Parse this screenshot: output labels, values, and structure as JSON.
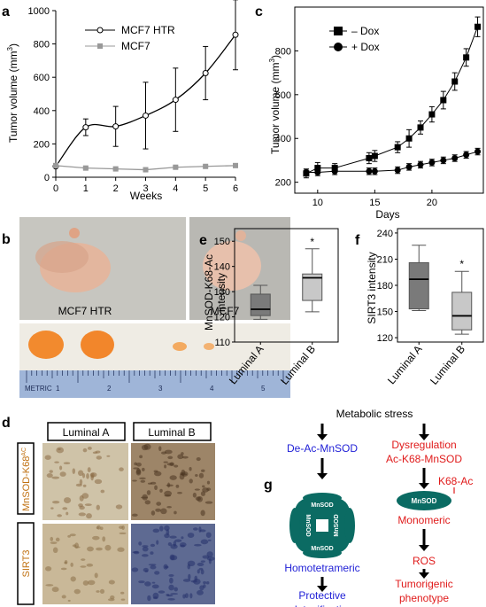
{
  "panel_letters": {
    "a": "a",
    "b": "b",
    "c": "c",
    "d": "d",
    "e": "e",
    "f": "f",
    "g": "g"
  },
  "chart_data": [
    {
      "id": "a",
      "type": "line",
      "xlabel": "Weeks",
      "ylabel_pre": "Tumor volume (mm",
      "ylabel_sup": "3",
      "ylabel_post": ")",
      "x": [
        0,
        1,
        2,
        3,
        4,
        5,
        6
      ],
      "xlim": [
        0,
        6
      ],
      "ylim": [
        0,
        1000
      ],
      "xticks": [
        "0",
        "1",
        "2",
        "3",
        "4",
        "5",
        "6"
      ],
      "yticks": [
        "0",
        "200",
        "400",
        "600",
        "800",
        "1000"
      ],
      "legend_placement": "top",
      "series": [
        {
          "name": "MCF7 HTR",
          "marker": "open-circle",
          "color": "#000000",
          "smooth": true,
          "values": [
            65,
            300,
            305,
            370,
            465,
            625,
            855
          ],
          "err": [
            0,
            50,
            120,
            200,
            190,
            160,
            210
          ]
        },
        {
          "name": "MCF7",
          "marker": "square",
          "color": "#999999",
          "smooth": false,
          "values": [
            70,
            55,
            50,
            45,
            60,
            65,
            70
          ],
          "err": [
            0,
            5,
            5,
            5,
            5,
            5,
            5
          ]
        }
      ]
    },
    {
      "id": "c",
      "type": "line",
      "xlabel": "Days",
      "ylabel_pre": "Tumor volume (mm",
      "ylabel_sup": "3",
      "ylabel_post": ")",
      "xlim": [
        8,
        24.5
      ],
      "ylim": [
        150,
        1000
      ],
      "xticks": [
        "10",
        "15",
        "20"
      ],
      "xtick_values": [
        10,
        15,
        20
      ],
      "yticks": [
        "200",
        "400",
        "600",
        "800"
      ],
      "ytick_values": [
        200,
        400,
        600,
        800
      ],
      "legend_placement": "top-left",
      "series": [
        {
          "name": "– Dox",
          "marker": "square",
          "color": "#000000",
          "x": [
            9,
            10,
            11.5,
            14.5,
            15,
            17,
            18,
            19,
            20,
            21,
            22,
            23,
            24
          ],
          "values": [
            240,
            265,
            265,
            310,
            320,
            360,
            400,
            450,
            510,
            575,
            660,
            770,
            910
          ],
          "err": [
            20,
            25,
            20,
            25,
            25,
            25,
            40,
            30,
            35,
            40,
            40,
            40,
            45
          ]
        },
        {
          "name": "+ Dox",
          "marker": "circle",
          "color": "#000000",
          "x": [
            9,
            10,
            11.5,
            14.5,
            15,
            17,
            18,
            19,
            20,
            21,
            22,
            23,
            24
          ],
          "values": [
            245,
            245,
            250,
            250,
            250,
            255,
            270,
            280,
            290,
            300,
            310,
            325,
            340
          ],
          "err": [
            15,
            15,
            15,
            15,
            15,
            15,
            15,
            15,
            15,
            15,
            15,
            15,
            15
          ]
        }
      ]
    },
    {
      "id": "e",
      "type": "box",
      "ylabel": "MnSOD-K68-Ac\nintensity",
      "ylabel_line1": "MnSOD-K68-Ac",
      "ylabel_line2": "intensity",
      "ylim": [
        110,
        155
      ],
      "yticks": [
        "110",
        "120",
        "130",
        "140",
        "150"
      ],
      "ytick_values": [
        110,
        120,
        130,
        140,
        150
      ],
      "categories": [
        "Luminal A",
        "Luminal B"
      ],
      "boxes": [
        {
          "whisker_low": 119,
          "q1": 120.5,
          "median": 123,
          "q3": 129,
          "whisker_high": 132.5,
          "color": "#7a7a7a"
        },
        {
          "whisker_low": 122,
          "q1": 126.5,
          "median": 135.5,
          "q3": 137,
          "whisker_high": 147,
          "color": "#c8c8c8"
        }
      ],
      "annotation": "*"
    },
    {
      "id": "f",
      "type": "box",
      "ylabel": "SIRT3 intensity",
      "ylim": [
        115,
        245
      ],
      "yticks": [
        "120",
        "150",
        "180",
        "210",
        "240"
      ],
      "ytick_values": [
        120,
        150,
        180,
        210,
        240
      ],
      "categories": [
        "Luminal A",
        "Luminal B"
      ],
      "boxes": [
        {
          "whisker_low": 151,
          "q1": 153,
          "median": 187,
          "q3": 206,
          "whisker_high": 226,
          "color": "#7a7a7a"
        },
        {
          "whisker_low": 124,
          "q1": 129,
          "median": 145,
          "q3": 172,
          "whisker_high": 196,
          "color": "#c8c8c8"
        }
      ],
      "annotation": "*"
    }
  ],
  "panel_b": {
    "label_left": "MCF7 HTR",
    "label_right": "MCF7",
    "ruler_text": "METRIC",
    "ruler_numbers": [
      "1",
      "2",
      "3",
      "4",
      "5"
    ]
  },
  "panel_d": {
    "col_headers": [
      "Luminal A",
      "Luminal B"
    ],
    "row_labels": [
      "MnSOD-K68",
      "SIRT3"
    ],
    "row1_sup": "AC"
  },
  "panel_g": {
    "top": "Metabolic stress",
    "left_1": "De-Ac-MnSOD",
    "right_1a": "Dysregulation",
    "right_1b": "Ac-K68-MnSOD",
    "k68": "K68-Ac",
    "tetramer_label": "MnSOD",
    "monomer_label": "MnSOD",
    "left_2": "Homotetrameric",
    "right_2": "Monomeric",
    "right_3": "ROS",
    "left_3a": "Protective",
    "left_3b": "detoxification",
    "right_4a": "Tumorigenic",
    "right_4b": "phenotype",
    "colors": {
      "blue": "#1f1fd6",
      "red": "#e01b1b",
      "teal": "#0b6b63"
    }
  }
}
